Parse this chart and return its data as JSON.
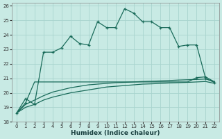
{
  "xlabel": "Humidex (Indice chaleur)",
  "xlim": [
    -0.5,
    22.5
  ],
  "ylim": [
    18,
    26.2
  ],
  "yticks": [
    18,
    19,
    20,
    21,
    22,
    23,
    24,
    25,
    26
  ],
  "xticks": [
    0,
    1,
    2,
    3,
    4,
    5,
    6,
    7,
    8,
    9,
    10,
    11,
    12,
    13,
    14,
    15,
    16,
    17,
    18,
    19,
    20,
    21,
    22
  ],
  "bg_color": "#c8eae4",
  "grid_color": "#a8d4ce",
  "line_color": "#1a6b5a",
  "series1_x": [
    0,
    1,
    2,
    3,
    4,
    5,
    6,
    7,
    8,
    9,
    10,
    11,
    12,
    13,
    14,
    15,
    16,
    17,
    18,
    19,
    20,
    21,
    22
  ],
  "series1_y": [
    18.6,
    19.6,
    19.2,
    22.8,
    22.8,
    23.1,
    23.9,
    23.4,
    23.3,
    24.9,
    24.5,
    24.5,
    25.8,
    25.5,
    24.9,
    24.9,
    24.5,
    24.5,
    23.2,
    23.3,
    23.3,
    21.0,
    20.7
  ],
  "series2_x": [
    0,
    1,
    2,
    3,
    4,
    5,
    6,
    7,
    8,
    9,
    10,
    11,
    12,
    13,
    14,
    15,
    16,
    17,
    18,
    19,
    20,
    21,
    22
  ],
  "series2_y": [
    18.6,
    19.3,
    20.75,
    20.75,
    20.75,
    20.75,
    20.75,
    20.75,
    20.75,
    20.75,
    20.75,
    20.75,
    20.75,
    20.75,
    20.75,
    20.75,
    20.75,
    20.75,
    20.75,
    20.75,
    21.05,
    21.1,
    20.75
  ],
  "series3_x": [
    0,
    1,
    2,
    3,
    4,
    5,
    6,
    7,
    8,
    9,
    10,
    11,
    12,
    13,
    14,
    15,
    16,
    17,
    18,
    19,
    20,
    21,
    22
  ],
  "series3_y": [
    18.6,
    19.2,
    19.5,
    19.8,
    20.05,
    20.2,
    20.35,
    20.45,
    20.55,
    20.6,
    20.65,
    20.7,
    20.72,
    20.75,
    20.78,
    20.8,
    20.82,
    20.85,
    20.88,
    20.9,
    20.92,
    20.95,
    20.78
  ],
  "series4_x": [
    0,
    1,
    2,
    3,
    4,
    5,
    6,
    7,
    8,
    9,
    10,
    11,
    12,
    13,
    14,
    15,
    16,
    17,
    18,
    19,
    20,
    21,
    22
  ],
  "series4_y": [
    18.6,
    19.0,
    19.2,
    19.5,
    19.7,
    19.85,
    20.0,
    20.1,
    20.2,
    20.3,
    20.4,
    20.45,
    20.5,
    20.55,
    20.6,
    20.62,
    20.65,
    20.68,
    20.7,
    20.72,
    20.75,
    20.78,
    20.65
  ]
}
